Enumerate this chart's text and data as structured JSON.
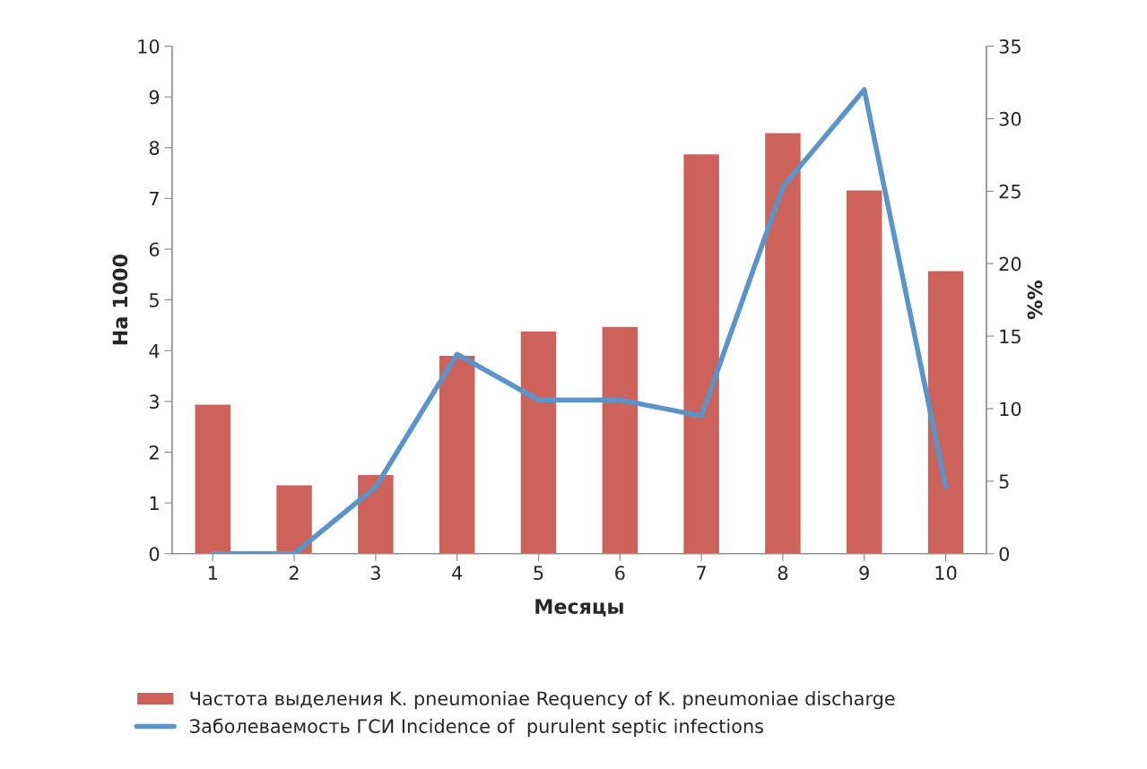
{
  "chart_data": {
    "type": "bar",
    "xlabel": "Месяцы",
    "ylabel": "На 1000",
    "y2label": "%%",
    "categories": [
      "1",
      "2",
      "3",
      "4",
      "5",
      "6",
      "7",
      "8",
      "9",
      "10"
    ],
    "series": [
      {
        "name": "Частота выделения K. pneumoniae Requency of K. pneumoniae discharge",
        "color": "#cd625b",
        "values": [
          2.95,
          1.36,
          1.56,
          3.91,
          4.39,
          4.48,
          7.88,
          8.3,
          7.17,
          5.58
        ]
      },
      {
        "name": "Заболеваемость ГСИ Incidence of  purulent septic infections",
        "type": "line",
        "axis": "y2",
        "color": "#5b94c9",
        "values": [
          0,
          0,
          4.6,
          13.75,
          10.6,
          10.6,
          9.5,
          25.3,
          32.0,
          4.6
        ]
      }
    ],
    "ylim": [
      0,
      10
    ],
    "yticks": [
      0,
      1,
      2,
      3,
      4,
      5,
      6,
      7,
      8,
      9,
      10
    ],
    "y2lim": [
      0,
      35
    ],
    "y2ticks": [
      0,
      5,
      10,
      15,
      20,
      25,
      30,
      35
    ],
    "grid": false,
    "legend": "bottom",
    "marker": "none",
    "line_style": "solid"
  }
}
